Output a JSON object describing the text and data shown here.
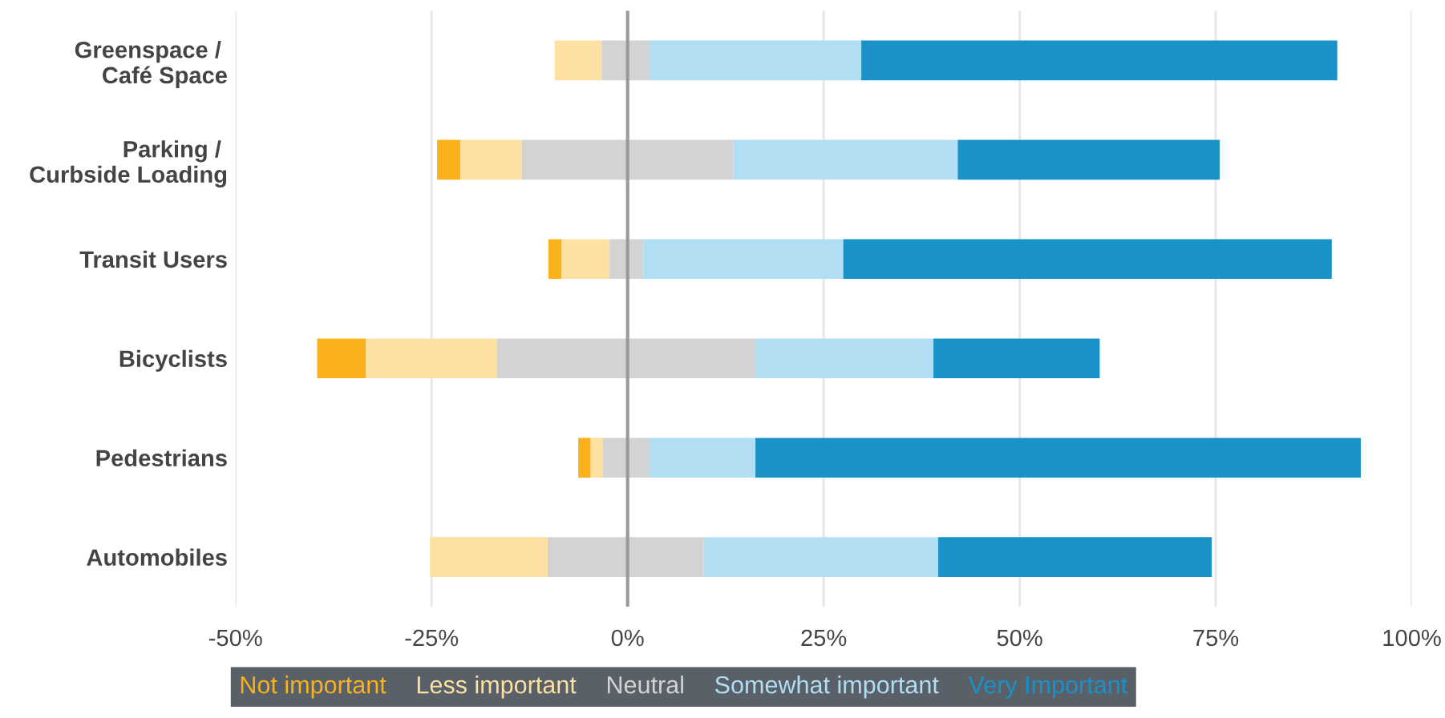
{
  "chart_data": {
    "type": "bar",
    "orientation": "horizontal",
    "categories": [
      "Greenspace / \nCafé Space",
      "Parking / \nCurbside Loading",
      "Transit Users",
      "Bicyclists",
      "Pedestrians",
      "Automobiles"
    ],
    "series": [
      {
        "name": "Not important",
        "color": "#f9b21c",
        "base": [
          null,
          -24.3,
          -10.1,
          -39.6,
          -6.3,
          null
        ],
        "values": [
          null,
          3,
          1.7,
          6.2,
          1.6,
          null
        ]
      },
      {
        "name": "Less important",
        "color": "#fde1a2",
        "base": [
          -9.3,
          -21.3,
          -8.4,
          -33.4,
          -4.7,
          -25.2
        ],
        "values": [
          6,
          7.8,
          6.1,
          16.7,
          1.5,
          15
        ]
      },
      {
        "name": "Neutral",
        "color": "#d3d3d3",
        "base": [
          -3.3,
          -13.5,
          -2.3,
          -16.7,
          -3.2,
          -10.2
        ],
        "values": [
          6.1,
          27,
          4.3,
          33,
          6,
          19.9
        ]
      },
      {
        "name": "Somewhat important",
        "color": "#b2def3",
        "base": [
          2.8,
          13.5,
          2,
          16.3,
          2.8,
          9.7
        ],
        "values": [
          27,
          28.6,
          25.5,
          22.7,
          13.5,
          29.9
        ]
      },
      {
        "name": "Very Important",
        "color": "#1b92c7",
        "base": [
          29.8,
          42.1,
          27.5,
          39,
          16.3,
          39.6
        ],
        "values": [
          60.7,
          33.4,
          62.3,
          21.2,
          77.2,
          34.9
        ]
      }
    ],
    "xlim": [
      -50,
      100
    ],
    "xticks": [
      {
        "value": -50,
        "label": "-50%"
      },
      {
        "value": -25,
        "label": "-25%"
      },
      {
        "value": 0,
        "label": "0%"
      },
      {
        "value": 25,
        "label": "25%"
      },
      {
        "value": 50,
        "label": "50%"
      },
      {
        "value": 75,
        "label": "75%"
      },
      {
        "value": 100,
        "label": "100%"
      }
    ],
    "ref_lines": [
      {
        "axis": "x",
        "value": 0,
        "color": "#9a9a9a"
      }
    ],
    "grid": "x",
    "legend": "bottom"
  }
}
